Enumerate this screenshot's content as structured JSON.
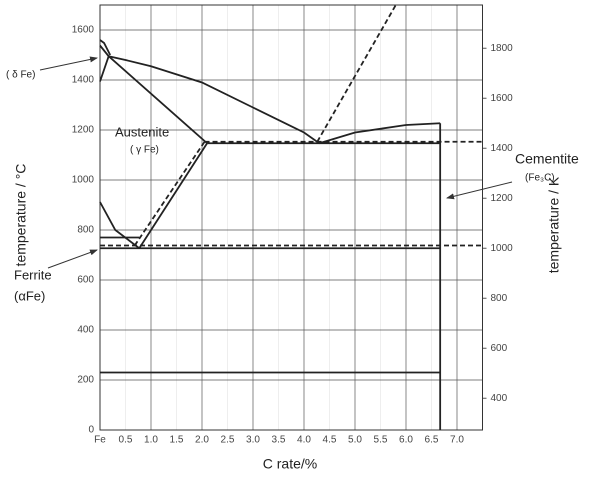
{
  "chart_data": {
    "type": "line",
    "xlabel": "C rate/%",
    "ylabel": "temperature / °C",
    "y2label": "temperature / K",
    "annotations": [
      "( δ Fe)",
      "Austenite",
      "( γ Fe)",
      "Cementite",
      "(Fe₃C)",
      "Ferrite",
      "(αFe)"
    ],
    "xlim": [
      0,
      7.5
    ],
    "xticks": [
      {
        "value": 0,
        "label": "Fe"
      },
      0.5,
      {
        "value": 1,
        "label": "1.0"
      },
      1.5,
      {
        "value": 2,
        "label": "2.0"
      },
      2.5,
      {
        "value": 3,
        "label": "3.0"
      },
      3.5,
      {
        "value": 4,
        "label": "4.0"
      },
      4.5,
      {
        "value": 5,
        "label": "5.0"
      },
      5.5,
      {
        "value": 6,
        "label": "6.0"
      },
      6.5,
      {
        "value": 7,
        "label": "7.0"
      }
    ],
    "ylim": [
      0,
      1700
    ],
    "yticks": [
      0,
      200,
      400,
      600,
      800,
      1000,
      1200,
      1400,
      1600
    ],
    "y2lim": [
      273,
      1973
    ],
    "y2ticks": [
      400,
      600,
      800,
      1000,
      1200,
      1400,
      1600,
      1800
    ],
    "grid": true,
    "series": [
      {
        "color": "#222",
        "dashed": false,
        "x": [
          0,
          0.17
        ],
        "values": [
          1538,
          1495
        ]
      },
      {
        "color": "#222",
        "dashed": false,
        "x": [
          0,
          0.08,
          0.2
        ],
        "values": [
          1560,
          1548,
          1500
        ]
      },
      {
        "color": "#222",
        "dashed": false,
        "x": [
          0.17,
          0.5,
          1,
          2,
          3,
          4,
          4.3
        ],
        "values": [
          1495,
          1480,
          1455,
          1390,
          1290,
          1190,
          1147
        ]
      },
      {
        "color": "#222",
        "dashed": false,
        "x": [
          4.3,
          5,
          6,
          6.67
        ],
        "values": [
          1147,
          1190,
          1220,
          1227
        ]
      },
      {
        "color": "#222",
        "dashed": false,
        "x": [
          0,
          0.17,
          2.1
        ],
        "values": [
          1394,
          1495,
          1147
        ]
      },
      {
        "color": "#222",
        "dashed": false,
        "x": [
          2.1,
          6.67
        ],
        "values": [
          1147,
          1147
        ]
      },
      {
        "color": "#222",
        "dashed": false,
        "x": [
          0,
          0.3,
          0.77
        ],
        "values": [
          912,
          800,
          727
        ]
      },
      {
        "color": "#222",
        "dashed": false,
        "x": [
          0.77,
          2.1
        ],
        "values": [
          727,
          1147
        ]
      },
      {
        "color": "#222",
        "dashed": false,
        "x": [
          0,
          0.77
        ],
        "values": [
          770,
          770
        ]
      },
      {
        "color": "#222",
        "dashed": false,
        "x": [
          0,
          6.67
        ],
        "values": [
          727,
          727
        ]
      },
      {
        "color": "#222",
        "dashed": false,
        "x": [
          6.67,
          6.67
        ],
        "values": [
          0,
          1227
        ]
      },
      {
        "color": "#222",
        "dashed": false,
        "x": [
          0,
          6.67
        ],
        "values": [
          230,
          230
        ]
      },
      {
        "color": "#222",
        "dashed": true,
        "x": [
          2.05,
          7.5
        ],
        "values": [
          1153,
          1153
        ]
      },
      {
        "color": "#222",
        "dashed": true,
        "x": [
          0,
          7.5
        ],
        "values": [
          738,
          738
        ]
      },
      {
        "color": "#222",
        "dashed": true,
        "x": [
          0.68,
          2.05
        ],
        "values": [
          738,
          1153
        ]
      },
      {
        "color": "#222",
        "dashed": true,
        "x": [
          4.26,
          5.8
        ],
        "values": [
          1153,
          1700
        ]
      }
    ]
  }
}
